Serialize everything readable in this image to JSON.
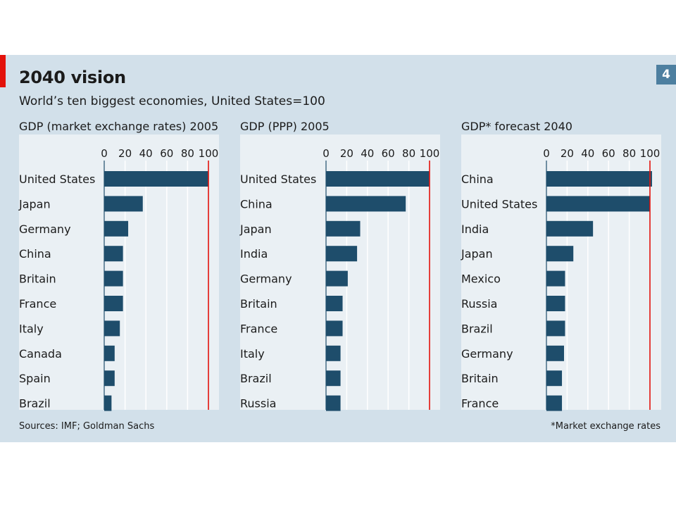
{
  "header": {
    "title": "2040 vision",
    "subtitle": "World’s ten biggest economies, United States=100",
    "chart_number": "4"
  },
  "footer": {
    "source": "Sources: IMF; Goldman Sachs",
    "footnote": "*Market exchange rates"
  },
  "colors": {
    "bar": "#1e4d6b",
    "reference_line": "#e3120b",
    "panel_background": "#eaf0f4",
    "figure_background": "#d2e0ea"
  },
  "chart_data": [
    {
      "type": "bar",
      "orientation": "horizontal",
      "title": "GDP (market exchange rates) 2005",
      "xlim": [
        0,
        100
      ],
      "ticks": [
        0,
        20,
        40,
        60,
        80,
        100
      ],
      "reference_line": 100,
      "categories": [
        "United States",
        "Japan",
        "Germany",
        "China",
        "Britain",
        "France",
        "Italy",
        "Canada",
        "Spain",
        "Brazil"
      ],
      "values": [
        100,
        37,
        23,
        18,
        18,
        18,
        15,
        10,
        10,
        7
      ]
    },
    {
      "type": "bar",
      "orientation": "horizontal",
      "title": "GDP (PPP) 2005",
      "xlim": [
        0,
        100
      ],
      "ticks": [
        0,
        20,
        40,
        60,
        80,
        100
      ],
      "reference_line": 100,
      "categories": [
        "United States",
        "China",
        "Japan",
        "India",
        "Germany",
        "Britain",
        "France",
        "Italy",
        "Brazil",
        "Russia"
      ],
      "values": [
        100,
        77,
        33,
        30,
        21,
        16,
        16,
        14,
        14,
        14
      ]
    },
    {
      "type": "bar",
      "orientation": "horizontal",
      "title": "GDP* forecast 2040",
      "xlim": [
        0,
        100
      ],
      "ticks": [
        0,
        20,
        40,
        60,
        80,
        100
      ],
      "reference_line": 100,
      "categories": [
        "China",
        "United States",
        "India",
        "Japan",
        "Mexico",
        "Russia",
        "Brazil",
        "Germany",
        "Britain",
        "France"
      ],
      "values": [
        102,
        100,
        45,
        26,
        18,
        18,
        18,
        17,
        15,
        15
      ]
    }
  ]
}
